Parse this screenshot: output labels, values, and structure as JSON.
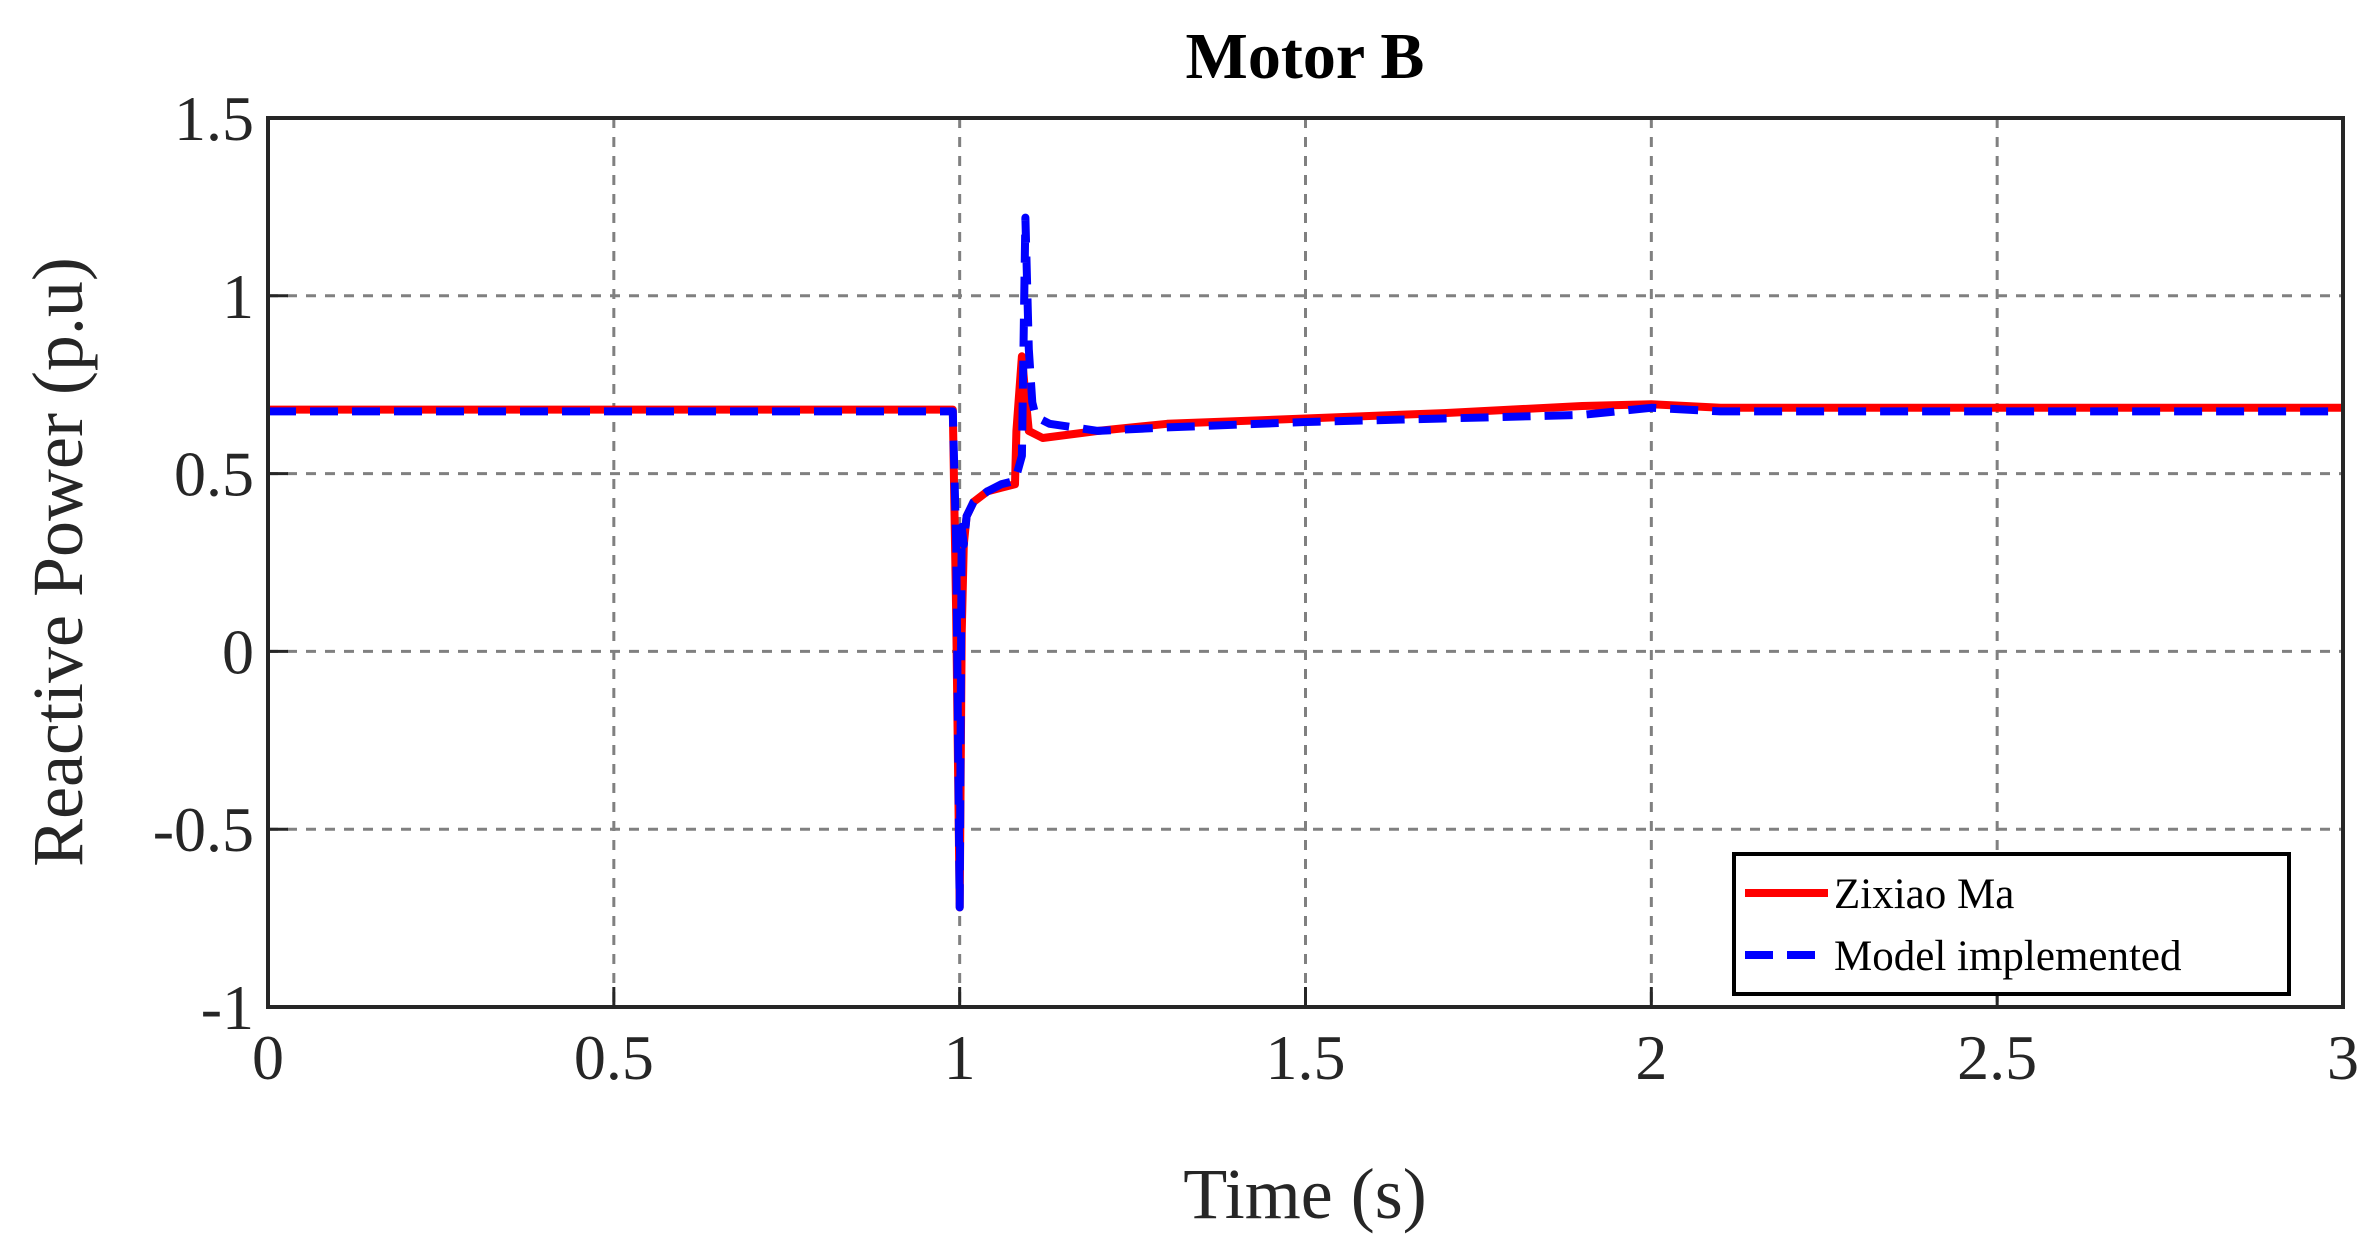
{
  "chart_data": {
    "type": "line",
    "title": "Motor B",
    "xlabel": "Time (s)",
    "ylabel": "Reactive Power (p.u)",
    "xlim": [
      0,
      3
    ],
    "ylim": [
      -1,
      1.5
    ],
    "xticks": [
      "0",
      "0.5",
      "1",
      "1.5",
      "2",
      "2.5",
      "3"
    ],
    "yticks": [
      "1.5",
      "1",
      "0.5",
      "0",
      "-0.5",
      "-1"
    ],
    "grid": true,
    "legend_position": "bottom-right",
    "series": [
      {
        "name": "Zixiao Ma",
        "color": "#ff0000",
        "style": "solid",
        "x": [
          0,
          0.5,
          0.99,
          0.995,
          1.0,
          1.003,
          1.006,
          1.01,
          1.02,
          1.04,
          1.06,
          1.08,
          1.082,
          1.09,
          1.095,
          1.1,
          1.12,
          1.2,
          1.3,
          1.5,
          1.7,
          1.9,
          2.0,
          2.1,
          2.5,
          3.0
        ],
        "y": [
          0.68,
          0.68,
          0.68,
          0.1,
          -0.72,
          0.05,
          0.3,
          0.38,
          0.42,
          0.45,
          0.46,
          0.47,
          0.62,
          0.83,
          0.72,
          0.62,
          0.6,
          0.62,
          0.64,
          0.655,
          0.67,
          0.69,
          0.695,
          0.685,
          0.685,
          0.685
        ]
      },
      {
        "name": "Model implemented",
        "color": "#0000ff",
        "style": "dashed",
        "x": [
          0,
          0.5,
          0.99,
          0.995,
          1.0,
          1.003,
          1.006,
          1.01,
          1.02,
          1.04,
          1.06,
          1.08,
          1.09,
          1.095,
          1.1,
          1.105,
          1.11,
          1.13,
          1.2,
          1.3,
          1.5,
          1.7,
          1.9,
          2.0,
          2.1,
          2.5,
          3.0
        ],
        "y": [
          0.675,
          0.675,
          0.675,
          0.3,
          -0.72,
          0.35,
          0.3,
          0.38,
          0.42,
          0.45,
          0.47,
          0.48,
          0.55,
          1.22,
          0.85,
          0.7,
          0.66,
          0.64,
          0.62,
          0.63,
          0.645,
          0.655,
          0.665,
          0.685,
          0.675,
          0.675,
          0.675
        ]
      }
    ]
  }
}
